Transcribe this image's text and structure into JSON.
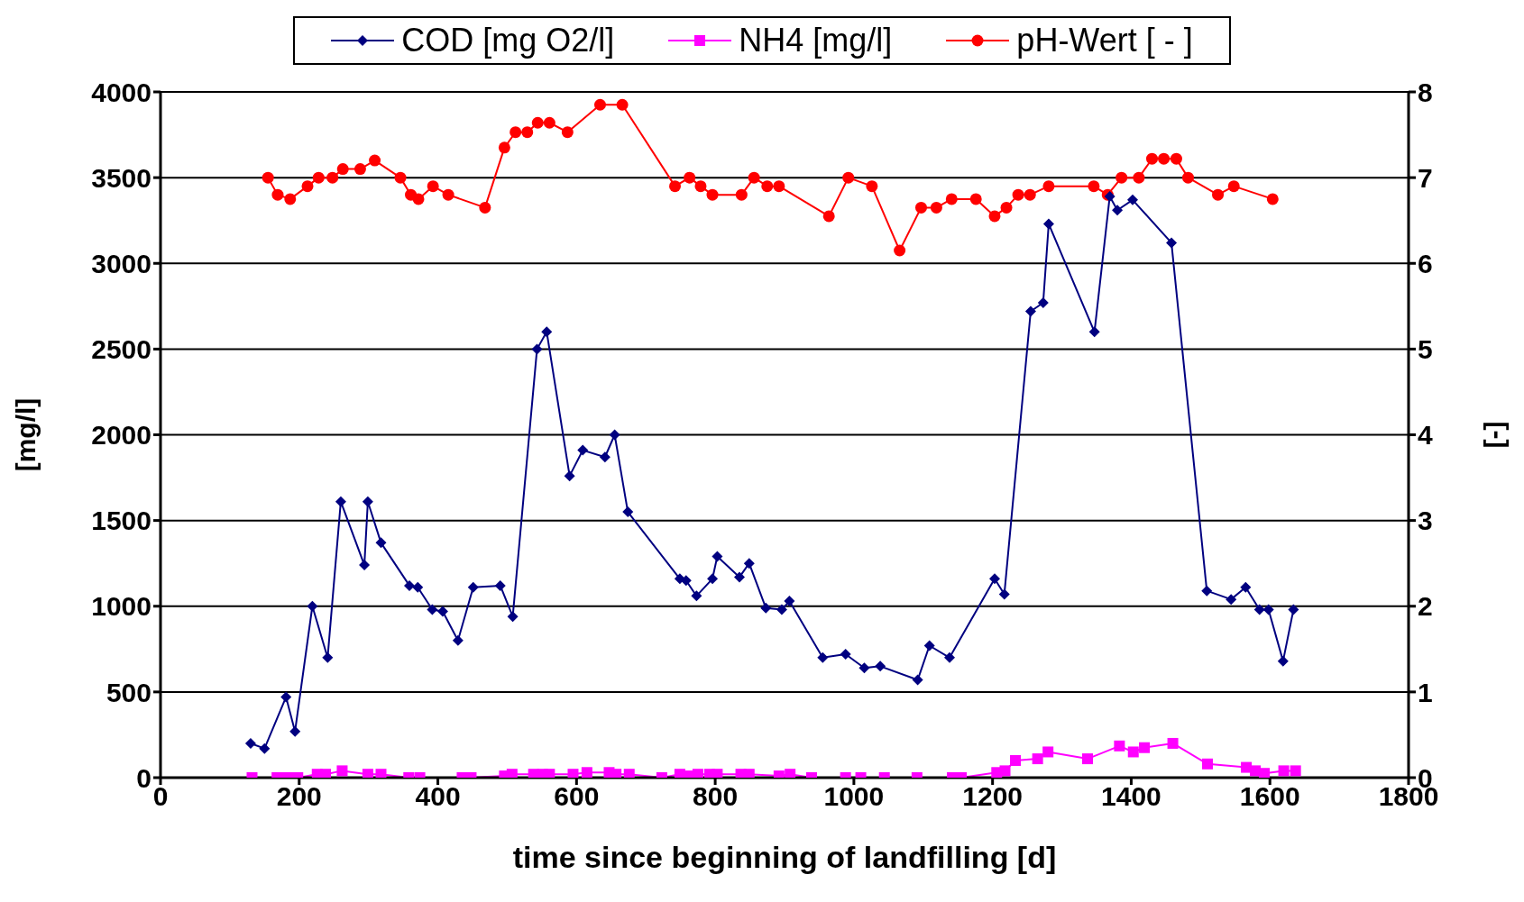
{
  "chart_data": {
    "type": "line",
    "xlabel": "time since beginning of landfilling [d]",
    "ylabel": "[mg/l]",
    "y2label": "[-]",
    "xlim": [
      0,
      1800
    ],
    "xticks": [
      0,
      200,
      400,
      600,
      800,
      1000,
      1200,
      1400,
      1600,
      1800
    ],
    "ylim": [
      0,
      4000
    ],
    "yticks": [
      0,
      500,
      1000,
      1500,
      2000,
      2500,
      3000,
      3500,
      4000
    ],
    "y2lim": [
      0,
      8
    ],
    "y2ticks": [
      0,
      1,
      2,
      3,
      4,
      5,
      6,
      7,
      8
    ],
    "grid": "y",
    "legend": "top",
    "series": [
      {
        "name": "COD [mg O2/l]",
        "color": "#000080",
        "marker": "diamond",
        "x": [
          130,
          150,
          181,
          194,
          219,
          241,
          260,
          294,
          299,
          318,
          359,
          371,
          392,
          407,
          429,
          451,
          490,
          508,
          543,
          557,
          590,
          609,
          641,
          655,
          674,
          749,
          758,
          773,
          796,
          803,
          835,
          849,
          873,
          896,
          907,
          955,
          988,
          1015,
          1038,
          1092,
          1109,
          1138,
          1203,
          1217,
          1255,
          1273,
          1281,
          1347,
          1369,
          1380,
          1402,
          1458,
          1509,
          1544,
          1565,
          1585,
          1598,
          1619,
          1634
        ],
        "values": [
          200,
          170,
          470,
          270,
          1000,
          700,
          1610,
          1240,
          1610,
          1370,
          1120,
          1110,
          980,
          970,
          800,
          1110,
          1120,
          940,
          2500,
          2600,
          1760,
          1910,
          1870,
          2000,
          1550,
          1160,
          1150,
          1060,
          1160,
          1290,
          1170,
          1250,
          990,
          980,
          1030,
          700,
          720,
          640,
          650,
          570,
          770,
          700,
          1160,
          1070,
          2720,
          2770,
          3230,
          2600,
          3390,
          3310,
          3370,
          3120,
          1090,
          1040,
          1110,
          980,
          980,
          680,
          980
        ]
      },
      {
        "name": "NH4 [mg/l]",
        "color": "#ff00ff",
        "marker": "square",
        "x": [
          132,
          168,
          179,
          190,
          198,
          226,
          238,
          262,
          299,
          318,
          358,
          374,
          435,
          448,
          496,
          507,
          538,
          551,
          561,
          595,
          615,
          647,
          657,
          676,
          723,
          749,
          760,
          775,
          792,
          803,
          837,
          849,
          892,
          908,
          939,
          988,
          1010,
          1044,
          1091,
          1142,
          1155,
          1206,
          1218,
          1233,
          1265,
          1280,
          1337,
          1383,
          1403,
          1419,
          1460,
          1510,
          1566,
          1579,
          1592,
          1620,
          1637
        ],
        "values": [
          0,
          0,
          0,
          0,
          0,
          20,
          20,
          40,
          20,
          20,
          0,
          0,
          0,
          0,
          10,
          20,
          20,
          20,
          20,
          20,
          30,
          30,
          20,
          20,
          0,
          20,
          10,
          20,
          20,
          20,
          20,
          20,
          10,
          20,
          0,
          0,
          0,
          0,
          0,
          0,
          0,
          30,
          40,
          100,
          110,
          150,
          110,
          185,
          150,
          175,
          200,
          80,
          60,
          40,
          25,
          40,
          40
        ]
      },
      {
        "name": "pH-Wert [ - ]",
        "color": "#ff0000",
        "marker": "circle",
        "axis": "y2",
        "x": [
          155,
          169,
          187,
          212,
          228,
          248,
          263,
          288,
          309,
          346,
          361,
          372,
          393,
          415,
          468,
          496,
          512,
          529,
          544,
          561,
          587,
          634,
          666,
          742,
          763,
          779,
          796,
          838,
          856,
          875,
          892,
          964,
          992,
          1026,
          1066,
          1097,
          1119,
          1141,
          1176,
          1203,
          1220,
          1237,
          1254,
          1281,
          1346,
          1366,
          1386,
          1411,
          1430,
          1447,
          1465,
          1482,
          1525,
          1548,
          1604
        ],
        "values": [
          7.0,
          6.8,
          6.75,
          6.9,
          7.0,
          7.0,
          7.1,
          7.1,
          7.2,
          7.0,
          6.8,
          6.75,
          6.9,
          6.8,
          6.65,
          7.35,
          7.53,
          7.53,
          7.64,
          7.64,
          7.53,
          7.85,
          7.85,
          6.9,
          7.0,
          6.9,
          6.8,
          6.8,
          7.0,
          6.9,
          6.9,
          6.55,
          7.0,
          6.9,
          6.15,
          6.65,
          6.65,
          6.75,
          6.75,
          6.55,
          6.65,
          6.8,
          6.8,
          6.9,
          6.9,
          6.8,
          7.0,
          7.0,
          7.22,
          7.22,
          7.22,
          7.0,
          6.8,
          6.9,
          6.75
        ]
      }
    ]
  }
}
